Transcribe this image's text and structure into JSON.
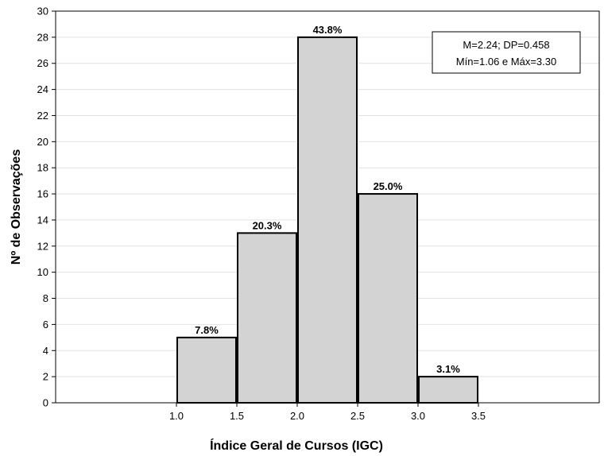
{
  "chart_data": {
    "type": "bar",
    "title": "",
    "xlabel": "Índice Geral de Cursos (IGC)",
    "ylabel": "Nº de Observações",
    "xlim": [
      0.0,
      4.5
    ],
    "ylim": [
      0,
      30
    ],
    "x_ticks": [
      "1.0",
      "1.5",
      "2.0",
      "2.5",
      "3.0",
      "3.5"
    ],
    "x_tick_values": [
      1.0,
      1.5,
      2.0,
      2.5,
      3.0,
      3.5
    ],
    "y_ticks": [
      0,
      2,
      4,
      6,
      8,
      10,
      12,
      14,
      16,
      18,
      20,
      22,
      24,
      26,
      28,
      30
    ],
    "bins": [
      {
        "from": 1.0,
        "to": 1.5,
        "count": 5,
        "label": "7.8%"
      },
      {
        "from": 1.5,
        "to": 2.0,
        "count": 13,
        "label": "20.3%"
      },
      {
        "from": 2.0,
        "to": 2.5,
        "count": 28,
        "label": "43.8%"
      },
      {
        "from": 2.5,
        "to": 3.0,
        "count": 16,
        "label": "25.0%"
      },
      {
        "from": 3.0,
        "to": 3.5,
        "count": 2,
        "label": "3.1%"
      }
    ],
    "grid": true,
    "bar_color": "#d3d3d3",
    "annotation": {
      "line1": "M=2.24; DP=0.458",
      "line2": "Mín=1.06 e Máx=3.30",
      "placement": "top-right"
    }
  }
}
